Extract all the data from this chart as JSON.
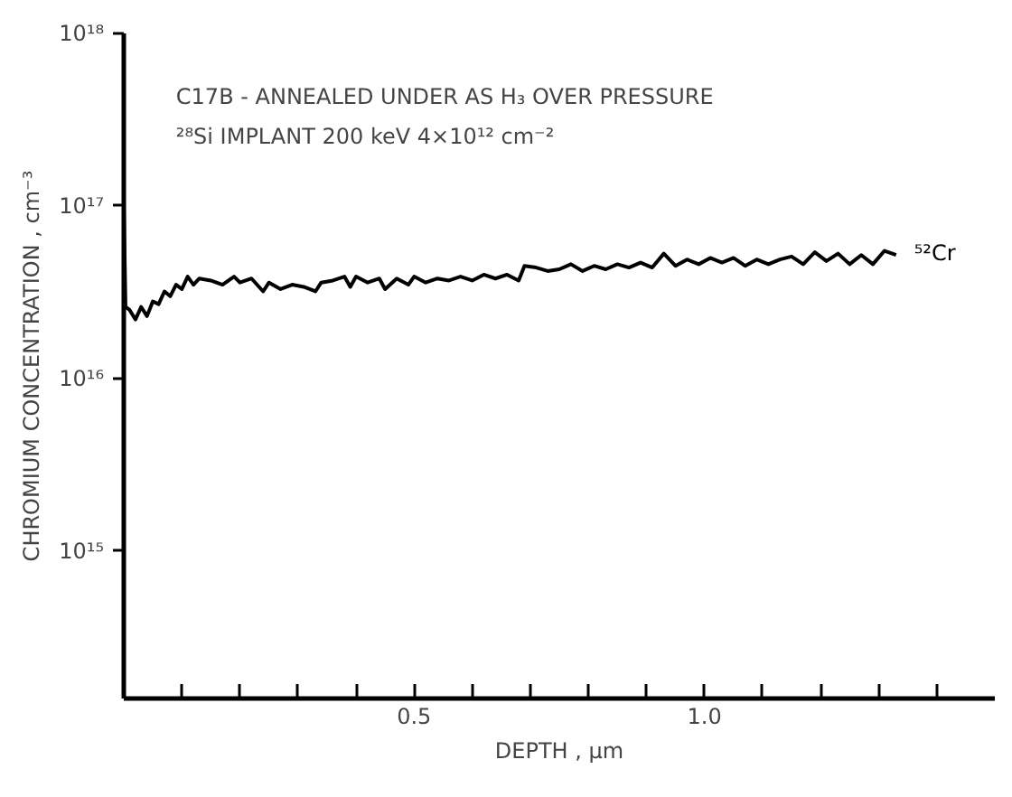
{
  "chart_data": {
    "type": "line",
    "xlabel": "DEPTH , μm",
    "ylabel": "CHROMIUM CONCENTRATION , cm⁻³",
    "annotations": [
      "C17B - ANNEALED UNDER AS H₃ OVER PRESSURE",
      "²⁸Si IMPLANT 200 keV 4×10¹² cm⁻²"
    ],
    "log": "y",
    "grid": false,
    "legend": false,
    "marker": "none",
    "line_style": "solid",
    "xlim": [
      0,
      1.5
    ],
    "ylim": [
      140000000000000.0,
      1e+18
    ],
    "xticks": [
      {
        "value": 0.1,
        "label": null
      },
      {
        "value": 0.2,
        "label": null
      },
      {
        "value": 0.3,
        "label": null
      },
      {
        "value": 0.4,
        "label": null
      },
      0.5,
      {
        "value": 0.6,
        "label": null
      },
      {
        "value": 0.7,
        "label": null
      },
      {
        "value": 0.8,
        "label": null
      },
      {
        "value": 0.9,
        "label": null
      },
      {
        "value": 1,
        "label": "1.0"
      },
      {
        "value": 1.1,
        "label": null
      },
      {
        "value": 1.2,
        "label": null
      },
      {
        "value": 1.3,
        "label": null
      },
      {
        "value": 1.4,
        "label": null
      }
    ],
    "yticks": [
      {
        "value": 1000000000000000.0,
        "label": "10¹⁵"
      },
      {
        "value": 1e+16,
        "label": "10¹⁶"
      },
      {
        "value": 1e+17,
        "label": "10¹⁷"
      },
      {
        "value": 1e+18,
        "label": "10¹⁸"
      }
    ],
    "series": [
      {
        "name": "⁵²Cr",
        "color": "#000000",
        "x": [
          0.0,
          0.003,
          0.01,
          0.02,
          0.03,
          0.04,
          0.05,
          0.06,
          0.07,
          0.08,
          0.09,
          0.1,
          0.11,
          0.12,
          0.13,
          0.15,
          0.17,
          0.19,
          0.2,
          0.22,
          0.24,
          0.25,
          0.27,
          0.29,
          0.31,
          0.33,
          0.34,
          0.36,
          0.38,
          0.39,
          0.4,
          0.42,
          0.44,
          0.45,
          0.47,
          0.49,
          0.5,
          0.52,
          0.54,
          0.56,
          0.58,
          0.6,
          0.62,
          0.64,
          0.66,
          0.68,
          0.69,
          0.71,
          0.73,
          0.75,
          0.77,
          0.79,
          0.81,
          0.83,
          0.85,
          0.87,
          0.89,
          0.91,
          0.93,
          0.95,
          0.97,
          0.99,
          1.01,
          1.03,
          1.05,
          1.07,
          1.09,
          1.11,
          1.13,
          1.15,
          1.17,
          1.19,
          1.21,
          1.23,
          1.25,
          1.27,
          1.29,
          1.31,
          1.33
        ],
        "values": [
          1e+17,
          2.6e+16,
          2.5e+16,
          2.2e+16,
          2.6e+16,
          2.3e+16,
          2.8e+16,
          2.7e+16,
          3.2e+16,
          3e+16,
          3.5e+16,
          3.3e+16,
          3.9e+16,
          3.5e+16,
          3.8e+16,
          3.7e+16,
          3.5e+16,
          3.9e+16,
          3.6e+16,
          3.8e+16,
          3.2e+16,
          3.6e+16,
          3.3e+16,
          3.5e+16,
          3.4e+16,
          3.2e+16,
          3.6e+16,
          3.7e+16,
          3.9e+16,
          3.4e+16,
          3.9e+16,
          3.6e+16,
          3.8e+16,
          3.3e+16,
          3.8e+16,
          3.5e+16,
          3.9e+16,
          3.6e+16,
          3.8e+16,
          3.7e+16,
          3.9e+16,
          3.7e+16,
          4e+16,
          3.8e+16,
          4e+16,
          3.7e+16,
          4.5e+16,
          4.4e+16,
          4.2e+16,
          4.3e+16,
          4.6e+16,
          4.2e+16,
          4.5e+16,
          4.3e+16,
          4.6e+16,
          4.4e+16,
          4.7e+16,
          4.4e+16,
          5.3e+16,
          4.5e+16,
          4.9e+16,
          4.6e+16,
          5e+16,
          4.7e+16,
          5e+16,
          4.5e+16,
          4.9e+16,
          4.6e+16,
          4.9e+16,
          5.1e+16,
          4.6e+16,
          5.4e+16,
          4.8e+16,
          5.3e+16,
          4.6e+16,
          5.2e+16,
          4.6e+16,
          5.5e+16,
          5.2e+16
        ]
      }
    ]
  }
}
